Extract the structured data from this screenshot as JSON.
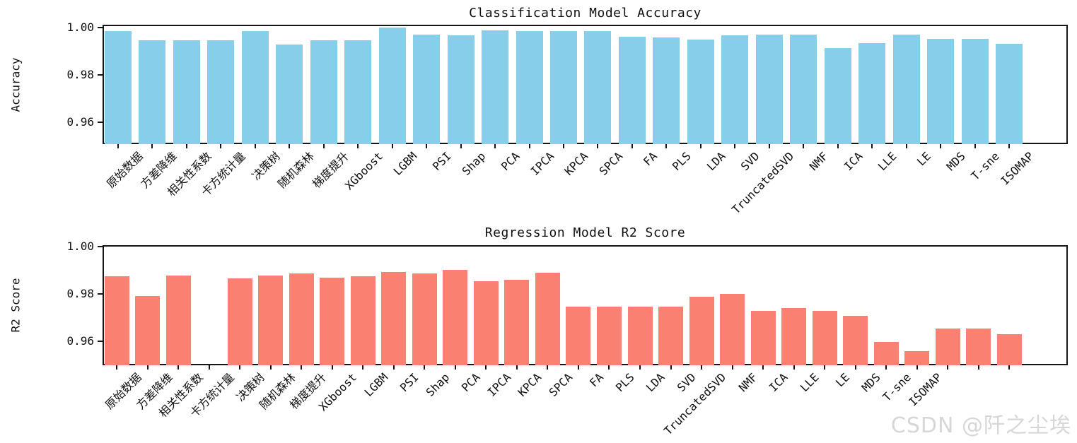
{
  "watermark": "CSDN @阡之尘埃",
  "chart_data": [
    {
      "type": "bar",
      "title": "Classification Model Accuracy",
      "ylabel": "Accuracy",
      "xlabel": "",
      "bar_color": "#87CEEB",
      "ylim": [
        0.9506,
        1.0013
      ],
      "yticks": [
        1.0,
        0.98,
        0.96
      ],
      "ytick_labels": [
        "1.00",
        "0.98",
        "0.96"
      ],
      "grid": false,
      "categories": [
        "原始数据",
        "方差降维",
        "相关性系数",
        "卡方统计量",
        "决策树",
        "随机森林",
        "梯度提升",
        "XGboost",
        "LGBM",
        "PSI",
        "Shap",
        "PCA",
        "IPCA",
        "KPCA",
        "SPCA",
        "FA",
        "PLS",
        "LDA",
        "SVD",
        "TruncatedSVD",
        "NMF",
        "ICA",
        "LLE",
        "LE",
        "MDS",
        "T-sne",
        "ISOMAP"
      ],
      "values": [
        0.9986,
        0.9948,
        0.9948,
        0.9948,
        0.9986,
        0.993,
        0.9948,
        0.9948,
        1.0,
        0.997,
        0.9968,
        0.9988,
        0.9986,
        0.9986,
        0.9986,
        0.9963,
        0.996,
        0.995,
        0.9967,
        0.9971,
        0.9971,
        0.9915,
        0.9935,
        0.9971,
        0.9953,
        0.9953,
        0.9933
      ]
    },
    {
      "type": "bar",
      "title": "Regression Model R2 Score",
      "ylabel": "R2 Score",
      "xlabel": "",
      "bar_color": "#FA8072",
      "ylim": [
        0.9499,
        1.0006
      ],
      "yticks": [
        1.0,
        0.98,
        0.96
      ],
      "ytick_labels": [
        "1.00",
        "0.98",
        "0.96"
      ],
      "grid": false,
      "categories": [
        "原始数据",
        "方差降维",
        "相关性系数",
        "卡方统计量",
        "决策树",
        "随机森林",
        "梯度提升",
        "XGboost",
        "LGBM",
        "PSI",
        "Shap",
        "PCA",
        "IPCA",
        "KPCA",
        "SPCA",
        "FA",
        "PLS",
        "LDA",
        "SVD",
        "TruncatedSVD",
        "NMF",
        "ICA",
        "LLE",
        "LE",
        "MDS",
        "T-sne",
        "ISOMAP",
        "",
        "",
        ""
      ],
      "values": [
        0.9874,
        0.9791,
        0.9877,
        null,
        0.9866,
        0.9878,
        0.9886,
        0.9868,
        0.9875,
        0.9893,
        0.9886,
        0.9901,
        0.9854,
        0.986,
        0.9889,
        0.9746,
        0.9746,
        0.9746,
        0.9746,
        0.9788,
        0.98,
        0.9728,
        0.974,
        0.9728,
        0.9707,
        0.9596,
        0.956,
        0.9654,
        0.9654,
        0.9631
      ]
    }
  ]
}
